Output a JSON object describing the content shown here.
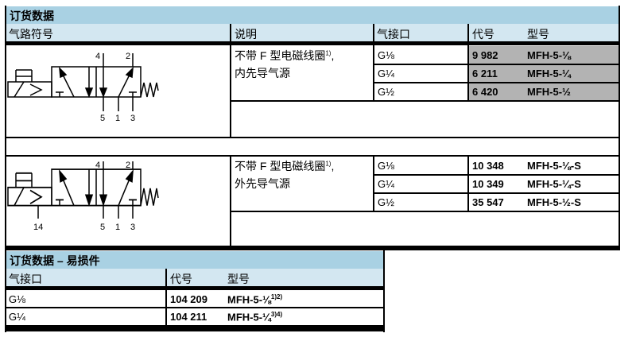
{
  "main": {
    "title": "订货数据",
    "headers": {
      "symbol": "气路符号",
      "description": "说明",
      "port": "气接口",
      "code": "代号",
      "type": "型号"
    },
    "groups": [
      {
        "desc_line1": "不带 F 型电磁线圈",
        "desc_sup": "1)",
        "desc_comma": ",",
        "desc_line2": "内先导气源",
        "symbol_labels": {
          "top": [
            "4",
            "2"
          ],
          "bottom": [
            "5",
            "1",
            "3"
          ]
        },
        "highlighted": true,
        "rows": [
          {
            "port": "G⅛",
            "code": "9 982",
            "type": "MFH-5-⅛"
          },
          {
            "port": "G¼",
            "code": "6 211",
            "type": "MFH-5-¼"
          },
          {
            "port": "G½",
            "code": "6 420",
            "type": "MFH-5-½"
          }
        ]
      },
      {
        "desc_line1": "不带 F 型电磁线圈",
        "desc_sup": "1)",
        "desc_comma": ",",
        "desc_line2": "外先导气源",
        "symbol_labels": {
          "top": [
            "4",
            "2"
          ],
          "bottom": [
            "5",
            "1",
            "3"
          ],
          "pilot": "14"
        },
        "highlighted": false,
        "rows": [
          {
            "port": "G⅛",
            "code": "10 348",
            "type": "MFH-5-⅛-S"
          },
          {
            "port": "G¼",
            "code": "10 349",
            "type": "MFH-5-¼-S"
          },
          {
            "port": "G½",
            "code": "35 547",
            "type": "MFH-5-½-S"
          }
        ]
      }
    ]
  },
  "spare": {
    "title": "订货数据 – 易损件",
    "headers": {
      "port": "气接口",
      "code": "代号",
      "type": "型号"
    },
    "rows": [
      {
        "port": "G⅛",
        "code": "104 209",
        "type": "MFH-5-⅛",
        "sup": "1)2)"
      },
      {
        "port": "G¼",
        "code": "104 211",
        "type": "MFH-5-¼",
        "sup": "3)4)"
      }
    ]
  },
  "colors": {
    "title_bg": "#a9d1e3",
    "header_bg": "#d3e7f1",
    "highlight": "#b3b3b3"
  }
}
